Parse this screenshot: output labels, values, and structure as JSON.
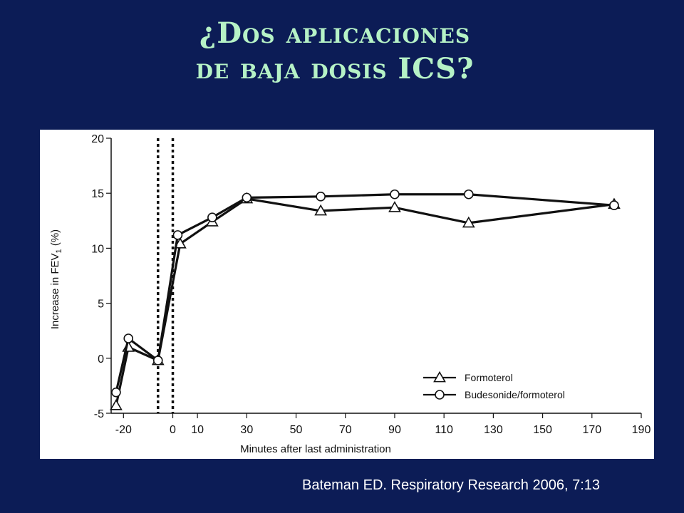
{
  "slide": {
    "title_line1": "¿Dos aplicaciones",
    "title_line2": "de baja dosis ICS?",
    "citation": "Bateman ED. Respiratory Research 2006, 7:13"
  },
  "colors": {
    "background": "#0c1c56",
    "title": "#b6f2c6",
    "chart_background": "#ffffff",
    "series": "#111111"
  },
  "chart_data": {
    "type": "line",
    "xlabel": "Minutes after last administration",
    "ylabel": "Increase in FEV1 (%)",
    "ylabel_main": "Increase in FEV",
    "ylabel_sub": "1",
    "ylabel_tail": " (%)",
    "xlim": [
      -25,
      190
    ],
    "ylim": [
      -5,
      20
    ],
    "xticks": [
      -20,
      0,
      10,
      30,
      50,
      70,
      90,
      110,
      130,
      150,
      170,
      190
    ],
    "yticks": [
      -5,
      0,
      5,
      10,
      15,
      20
    ],
    "dosing_lines_x": [
      -6,
      0
    ],
    "legend_position": "bottom-right",
    "series": [
      {
        "name": "Formoterol",
        "marker": "triangle",
        "points": [
          [
            -23,
            -4.3
          ],
          [
            -18,
            1.0
          ],
          [
            -6,
            -0.2
          ],
          [
            3,
            10.4
          ],
          [
            16,
            12.4
          ],
          [
            30,
            14.5
          ],
          [
            60,
            13.4
          ],
          [
            90,
            13.7
          ],
          [
            120,
            12.3
          ],
          [
            179,
            14.0
          ]
        ]
      },
      {
        "name": "Budesonide/formoterol",
        "marker": "circle",
        "points": [
          [
            -23,
            -3.1
          ],
          [
            -18,
            1.8
          ],
          [
            -6,
            -0.2
          ],
          [
            2,
            11.2
          ],
          [
            16,
            12.8
          ],
          [
            30,
            14.6
          ],
          [
            60,
            14.7
          ],
          [
            90,
            14.9
          ],
          [
            120,
            14.9
          ],
          [
            179,
            13.9
          ]
        ]
      }
    ]
  }
}
